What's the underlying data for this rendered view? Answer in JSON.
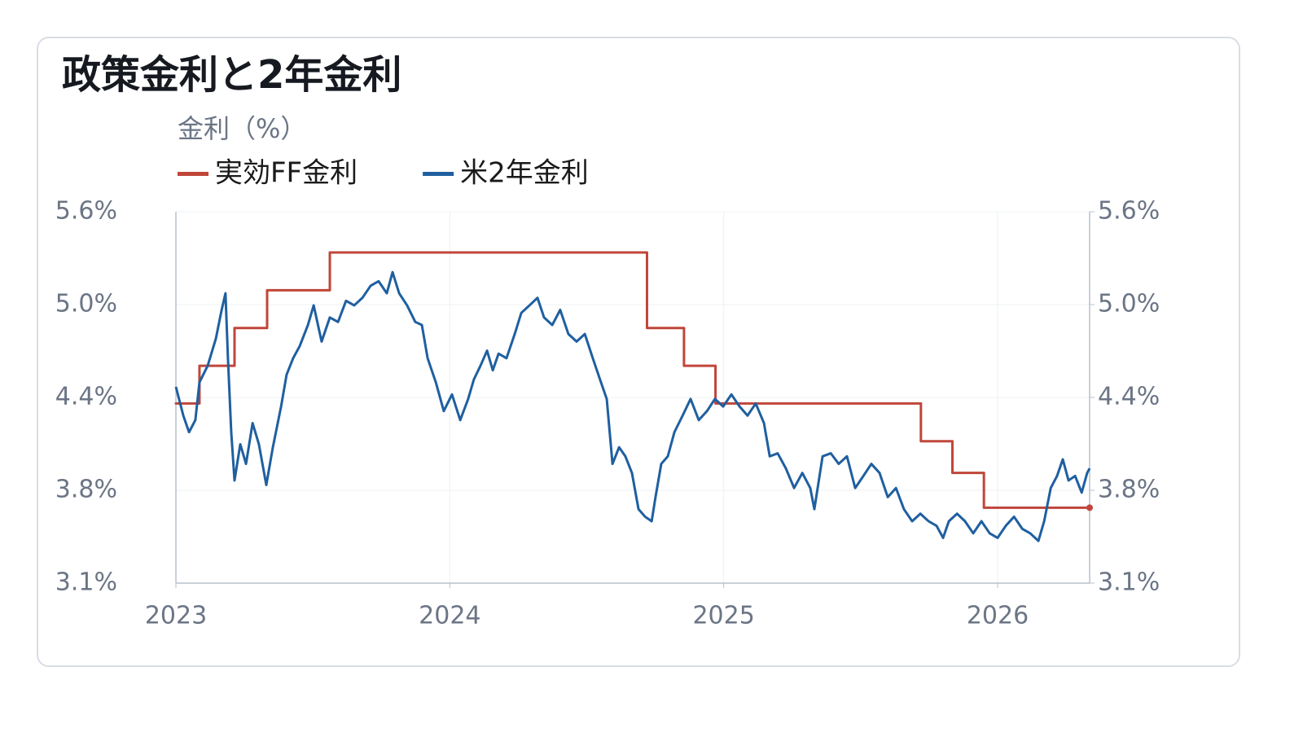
{
  "chart_data": {
    "type": "line",
    "title": "政策金利と2年金利",
    "y_label": "金利（%）",
    "legend": "top-left",
    "grid": true,
    "xlim": [
      2023,
      2026.336
    ],
    "xticks": [
      2023,
      2024,
      2025,
      2026
    ],
    "ylim": [
      3.14,
      5.6
    ],
    "yticks": [
      {
        "value": 3.14,
        "label": "3.1%"
      },
      {
        "value": 3.755,
        "label": "3.8%"
      },
      {
        "value": 4.37,
        "label": "4.4%"
      },
      {
        "value": 4.985,
        "label": "5.0%"
      },
      {
        "value": 5.6,
        "label": "5.6%"
      }
    ],
    "y2lim": [
      3.14,
      5.6
    ],
    "y2ticks": [
      {
        "value": 3.14,
        "label": "3.1%"
      },
      {
        "value": 3.755,
        "label": "3.8%"
      },
      {
        "value": 4.37,
        "label": "4.4%"
      },
      {
        "value": 4.985,
        "label": "5.0%"
      },
      {
        "value": 5.6,
        "label": "5.6%"
      }
    ],
    "series": [
      {
        "name": "実効FF金利",
        "color": "#c0463a",
        "step": "post",
        "end_marker": true,
        "x": [
          2023.0,
          2023.086,
          2023.214,
          2023.333,
          2023.562,
          2024.72,
          2024.855,
          2024.97,
          2025.72,
          2025.835,
          2025.95,
          2026.336
        ],
        "values": [
          4.33,
          4.58,
          4.83,
          5.08,
          5.33,
          4.83,
          4.58,
          4.33,
          4.08,
          3.87,
          3.64,
          3.64
        ]
      },
      {
        "name": "米2年金利",
        "color": "#1f5fa0",
        "x": [
          2023.0,
          2023.027,
          2023.048,
          2023.071,
          2023.086,
          2023.116,
          2023.146,
          2023.167,
          2023.181,
          2023.19,
          2023.202,
          2023.214,
          2023.235,
          2023.256,
          2023.28,
          2023.303,
          2023.33,
          2023.354,
          2023.384,
          2023.404,
          2023.428,
          2023.452,
          2023.482,
          2023.503,
          2023.532,
          2023.562,
          2023.592,
          2023.621,
          2023.651,
          2023.681,
          2023.711,
          2023.74,
          2023.77,
          2023.791,
          2023.815,
          2023.844,
          2023.874,
          2023.898,
          2023.919,
          2023.949,
          2023.978,
          2024.008,
          2024.038,
          2024.067,
          2024.088,
          2024.112,
          2024.136,
          2024.157,
          2024.178,
          2024.207,
          2024.237,
          2024.261,
          2024.291,
          2024.32,
          2024.344,
          2024.374,
          2024.403,
          2024.433,
          2024.463,
          2024.493,
          2024.522,
          2024.552,
          2024.573,
          2024.594,
          2024.618,
          2024.641,
          2024.665,
          2024.689,
          2024.713,
          2024.737,
          2024.751,
          2024.772,
          2024.796,
          2024.82,
          2024.85,
          2024.879,
          2024.909,
          2024.939,
          2024.968,
          2024.998,
          2025.028,
          2025.058,
          2025.087,
          2025.117,
          2025.147,
          2025.168,
          2025.197,
          2025.227,
          2025.257,
          2025.287,
          2025.316,
          2025.331,
          2025.361,
          2025.391,
          2025.42,
          2025.45,
          2025.48,
          2025.51,
          2025.539,
          2025.569,
          2025.599,
          2025.629,
          2025.658,
          2025.688,
          2025.718,
          2025.748,
          2025.777,
          2025.801,
          2025.822,
          2025.852,
          2025.881,
          2025.911,
          2025.941,
          2025.971,
          2026.0,
          2026.03,
          2026.06,
          2026.09,
          2026.119,
          2026.149,
          2026.17,
          2026.194,
          2026.217,
          2026.238,
          2026.259,
          2026.283,
          2026.307,
          2026.327,
          2026.336
        ],
        "values": [
          4.44,
          4.25,
          4.14,
          4.22,
          4.47,
          4.58,
          4.76,
          4.95,
          5.06,
          4.63,
          4.14,
          3.82,
          4.06,
          3.93,
          4.2,
          4.06,
          3.79,
          4.04,
          4.31,
          4.52,
          4.63,
          4.71,
          4.85,
          4.98,
          4.74,
          4.9,
          4.87,
          5.01,
          4.98,
          5.03,
          5.11,
          5.14,
          5.06,
          5.2,
          5.06,
          4.98,
          4.87,
          4.85,
          4.63,
          4.47,
          4.28,
          4.39,
          4.22,
          4.36,
          4.49,
          4.58,
          4.68,
          4.55,
          4.66,
          4.63,
          4.79,
          4.93,
          4.98,
          5.03,
          4.9,
          4.85,
          4.95,
          4.79,
          4.74,
          4.79,
          4.63,
          4.47,
          4.36,
          3.93,
          4.04,
          3.98,
          3.87,
          3.63,
          3.58,
          3.55,
          3.71,
          3.93,
          3.98,
          4.14,
          4.25,
          4.36,
          4.22,
          4.28,
          4.36,
          4.31,
          4.39,
          4.31,
          4.25,
          4.33,
          4.2,
          3.98,
          4.0,
          3.9,
          3.77,
          3.87,
          3.77,
          3.63,
          3.98,
          4.0,
          3.93,
          3.98,
          3.77,
          3.85,
          3.93,
          3.87,
          3.71,
          3.77,
          3.63,
          3.55,
          3.6,
          3.55,
          3.52,
          3.44,
          3.55,
          3.6,
          3.55,
          3.47,
          3.55,
          3.47,
          3.44,
          3.52,
          3.58,
          3.5,
          3.47,
          3.42,
          3.55,
          3.77,
          3.85,
          3.96,
          3.82,
          3.85,
          3.74,
          3.87,
          3.9
        ]
      }
    ]
  }
}
